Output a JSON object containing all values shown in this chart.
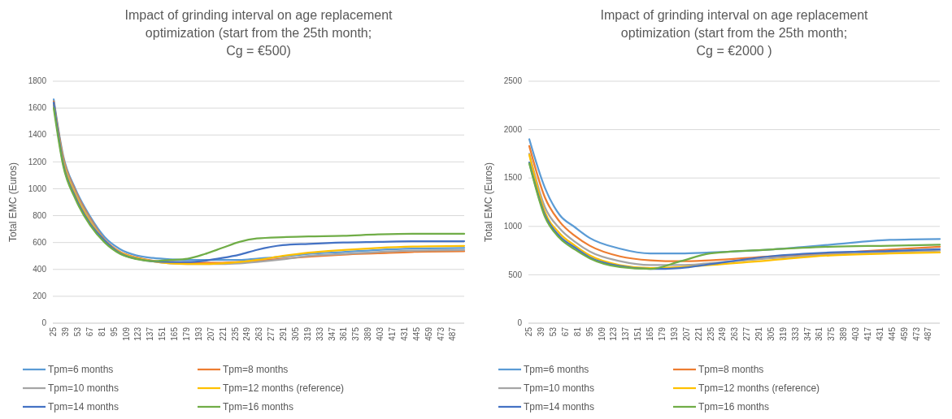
{
  "chart_data": [
    {
      "type": "line",
      "title": "Impact of grinding interval on age replacement\noptimization (start from the 25th month;\nCg = €500)",
      "ylabel": "Total EMC (Euros)",
      "xlim": [
        24,
        500
      ],
      "xticks": [
        25,
        39,
        53,
        67,
        81,
        95,
        109,
        123,
        137,
        151,
        165,
        179,
        193,
        207,
        221,
        235,
        249,
        263,
        277,
        291,
        305,
        319,
        333,
        347,
        361,
        375,
        389,
        403,
        417,
        431,
        445,
        459,
        473,
        487
      ],
      "ylim": [
        0,
        1800
      ],
      "yticks": [
        0,
        200,
        400,
        600,
        800,
        1000,
        1200,
        1400,
        1600,
        1800
      ],
      "grid": "y",
      "legend": "bottom",
      "x": [
        25,
        36,
        50,
        67,
        84,
        102,
        120,
        140,
        160,
        180,
        200,
        220,
        240,
        260,
        290,
        320,
        360,
        400,
        440,
        500
      ],
      "series": [
        {
          "name": "Tpm=6 months",
          "color": "#5b9bd5",
          "values": [
            1665,
            1245,
            1000,
            795,
            640,
            550,
            505,
            485,
            475,
            470,
            470,
            470,
            470,
            480,
            495,
            515,
            530,
            545,
            555,
            560
          ]
        },
        {
          "name": "Tpm=8 months",
          "color": "#ed7d31",
          "values": [
            1650,
            1230,
            985,
            780,
            620,
            530,
            490,
            465,
            455,
            450,
            450,
            450,
            455,
            465,
            480,
            495,
            510,
            520,
            530,
            535
          ]
        },
        {
          "name": "Tpm=10 months",
          "color": "#a5a5a5",
          "values": [
            1620,
            1215,
            970,
            768,
            615,
            525,
            485,
            460,
            445,
            440,
            440,
            440,
            445,
            455,
            475,
            500,
            515,
            530,
            540,
            545
          ]
        },
        {
          "name": "Tpm=12 months (reference)",
          "color": "#ffc000",
          "values": [
            1630,
            1200,
            955,
            755,
            615,
            525,
            485,
            460,
            445,
            440,
            440,
            445,
            455,
            470,
            500,
            525,
            545,
            560,
            570,
            575
          ]
        },
        {
          "name": "Tpm=14 months",
          "color": "#4472c4",
          "values": [
            1640,
            1185,
            940,
            742,
            615,
            520,
            480,
            460,
            455,
            455,
            465,
            485,
            510,
            545,
            580,
            590,
            600,
            605,
            610,
            610
          ]
        },
        {
          "name": "Tpm=16 months",
          "color": "#70ad47",
          "values": [
            1600,
            1170,
            925,
            730,
            600,
            515,
            478,
            462,
            470,
            480,
            515,
            560,
            605,
            630,
            640,
            645,
            650,
            660,
            665,
            665
          ]
        }
      ]
    },
    {
      "type": "line",
      "title": "Impact of grinding interval on age replacement\noptimization (start from the 25th month;\nCg = €2000 )",
      "ylabel": "Total EMC (Euros)",
      "xlim": [
        24,
        500
      ],
      "xticks": [
        25,
        39,
        53,
        67,
        81,
        95,
        109,
        123,
        137,
        151,
        165,
        179,
        193,
        207,
        221,
        235,
        249,
        263,
        277,
        291,
        305,
        319,
        333,
        347,
        361,
        375,
        389,
        403,
        417,
        431,
        445,
        459,
        473,
        487
      ],
      "ylim": [
        0,
        2500
      ],
      "yticks": [
        0,
        500,
        1000,
        1500,
        2000,
        2500
      ],
      "grid": "y",
      "legend": "bottom",
      "x": [
        25,
        43,
        60,
        78,
        95,
        130,
        165,
        200,
        234,
        303,
        373,
        442,
        500
      ],
      "series": [
        {
          "name": "Tpm=6 months",
          "color": "#5b9bd5",
          "values": [
            1900,
            1400,
            1120,
            990,
            880,
            770,
            720,
            720,
            730,
            760,
            810,
            860,
            870
          ]
        },
        {
          "name": "Tpm=8 months",
          "color": "#ed7d31",
          "values": [
            1830,
            1300,
            1050,
            900,
            800,
            690,
            650,
            640,
            650,
            690,
            720,
            760,
            790
          ]
        },
        {
          "name": "Tpm=10 months",
          "color": "#a5a5a5",
          "values": [
            1750,
            1200,
            980,
            840,
            740,
            640,
            600,
            600,
            620,
            670,
            710,
            730,
            750
          ]
        },
        {
          "name": "Tpm=12 months (reference)",
          "color": "#ffc000",
          "values": [
            1740,
            1150,
            930,
            800,
            700,
            600,
            570,
            580,
            600,
            650,
            700,
            720,
            730
          ]
        },
        {
          "name": "Tpm=14 months",
          "color": "#4472c4",
          "values": [
            1660,
            1120,
            900,
            780,
            680,
            590,
            560,
            570,
            610,
            690,
            730,
            745,
            765
          ]
        },
        {
          "name": "Tpm=16 months",
          "color": "#70ad47",
          "values": [
            1650,
            1100,
            880,
            760,
            670,
            580,
            560,
            640,
            720,
            760,
            790,
            800,
            810
          ]
        }
      ]
    }
  ]
}
